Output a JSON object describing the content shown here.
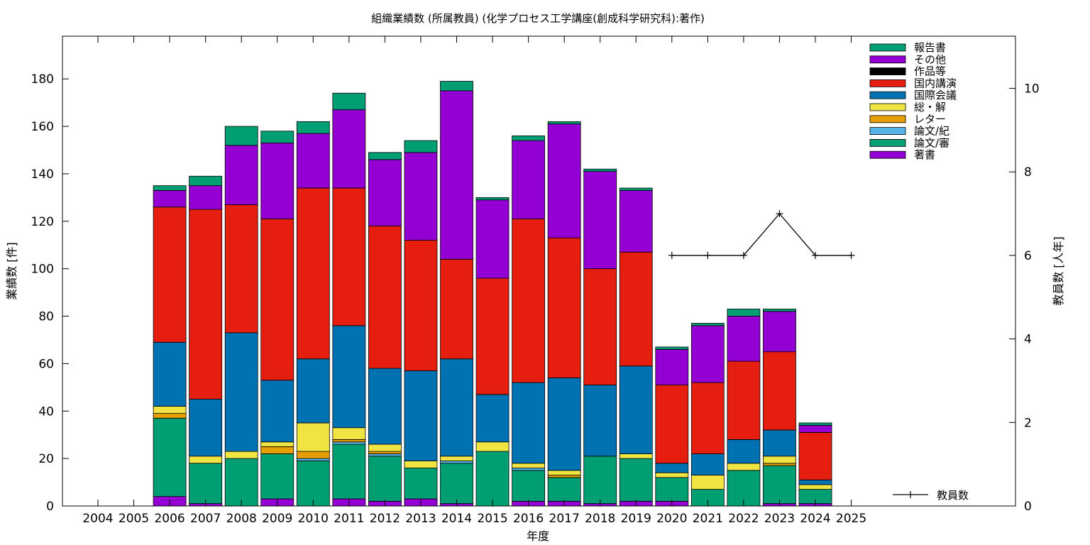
{
  "chart_data": {
    "type": "bar",
    "stacked": true,
    "title": "組織業績数 (所属教員) (化学プロセス工学講座(創成科学研究科):著作)",
    "xlabel": "年度",
    "ylabel": "業績数 [件]",
    "y2label": "教員数 [人年]",
    "ylim": [
      0,
      198
    ],
    "y2lim": [
      0,
      11.25
    ],
    "yticks": [
      0,
      20,
      40,
      60,
      80,
      100,
      120,
      140,
      160,
      180
    ],
    "y2ticks": [
      0,
      2,
      4,
      6,
      8,
      10
    ],
    "grid": false,
    "legend_position": "top-right",
    "categories": [
      "2004",
      "2005",
      "2006",
      "2007",
      "2008",
      "2009",
      "2010",
      "2011",
      "2012",
      "2013",
      "2014",
      "2015",
      "2016",
      "2017",
      "2018",
      "2019",
      "2020",
      "2021",
      "2022",
      "2023",
      "2024",
      "2025"
    ],
    "series": [
      {
        "name": "著書",
        "color": "#9400d3",
        "values": [
          0,
          0,
          4,
          1,
          0,
          3,
          0,
          3,
          2,
          3,
          1,
          0,
          2,
          2,
          1,
          2,
          2,
          0,
          0,
          1,
          1,
          0
        ]
      },
      {
        "name": "論文/審",
        "color": "#009e73",
        "values": [
          0,
          0,
          33,
          17,
          20,
          19,
          19,
          23,
          19,
          13,
          17,
          23,
          13,
          10,
          20,
          18,
          10,
          7,
          15,
          16,
          6,
          0
        ]
      },
      {
        "name": "論文/紀",
        "color": "#56b4e9",
        "values": [
          0,
          0,
          0,
          0,
          0,
          0,
          1,
          1,
          1,
          0,
          1,
          0,
          1,
          0,
          0,
          0,
          0,
          0,
          0,
          0,
          0,
          0
        ]
      },
      {
        "name": "レター",
        "color": "#e69f00",
        "values": [
          0,
          0,
          2,
          0,
          0,
          3,
          3,
          1,
          1,
          0,
          0,
          0,
          0,
          1,
          0,
          0,
          0,
          0,
          0,
          1,
          0,
          0
        ]
      },
      {
        "name": "総・解",
        "color": "#f0e442",
        "values": [
          0,
          0,
          3,
          3,
          3,
          2,
          12,
          5,
          3,
          3,
          2,
          4,
          2,
          2,
          0,
          2,
          2,
          6,
          3,
          3,
          2,
          0
        ]
      },
      {
        "name": "国際会議",
        "color": "#0072b2",
        "values": [
          0,
          0,
          27,
          24,
          50,
          26,
          27,
          43,
          32,
          38,
          41,
          20,
          34,
          39,
          30,
          37,
          4,
          9,
          10,
          11,
          2,
          0
        ]
      },
      {
        "name": "国内講演",
        "color": "#e51e10",
        "values": [
          0,
          0,
          57,
          80,
          54,
          68,
          72,
          58,
          60,
          55,
          42,
          49,
          69,
          59,
          49,
          48,
          33,
          30,
          33,
          33,
          20,
          0
        ]
      },
      {
        "name": "作品等",
        "color": "#000000",
        "values": [
          0,
          0,
          0,
          0,
          0,
          0,
          0,
          0,
          0,
          0,
          0,
          0,
          0,
          0,
          0,
          0,
          0,
          0,
          0,
          0,
          0,
          0
        ]
      },
      {
        "name": "その他",
        "color": "#9400d3",
        "values": [
          0,
          0,
          7,
          10,
          25,
          32,
          23,
          33,
          28,
          37,
          71,
          33,
          33,
          48,
          41,
          26,
          15,
          24,
          19,
          17,
          3,
          0
        ]
      },
      {
        "name": "報告書",
        "color": "#009e73",
        "values": [
          0,
          0,
          2,
          4,
          8,
          5,
          5,
          7,
          3,
          5,
          4,
          1,
          2,
          1,
          1,
          1,
          1,
          1,
          3,
          1,
          1,
          0
        ]
      }
    ],
    "line_series": {
      "name": "教員数",
      "color": "#000000",
      "axis": "y2",
      "x": [
        "2020",
        "2021",
        "2022",
        "2023",
        "2024",
        "2025"
      ],
      "values": [
        6,
        6,
        6,
        7,
        6,
        6
      ]
    }
  }
}
